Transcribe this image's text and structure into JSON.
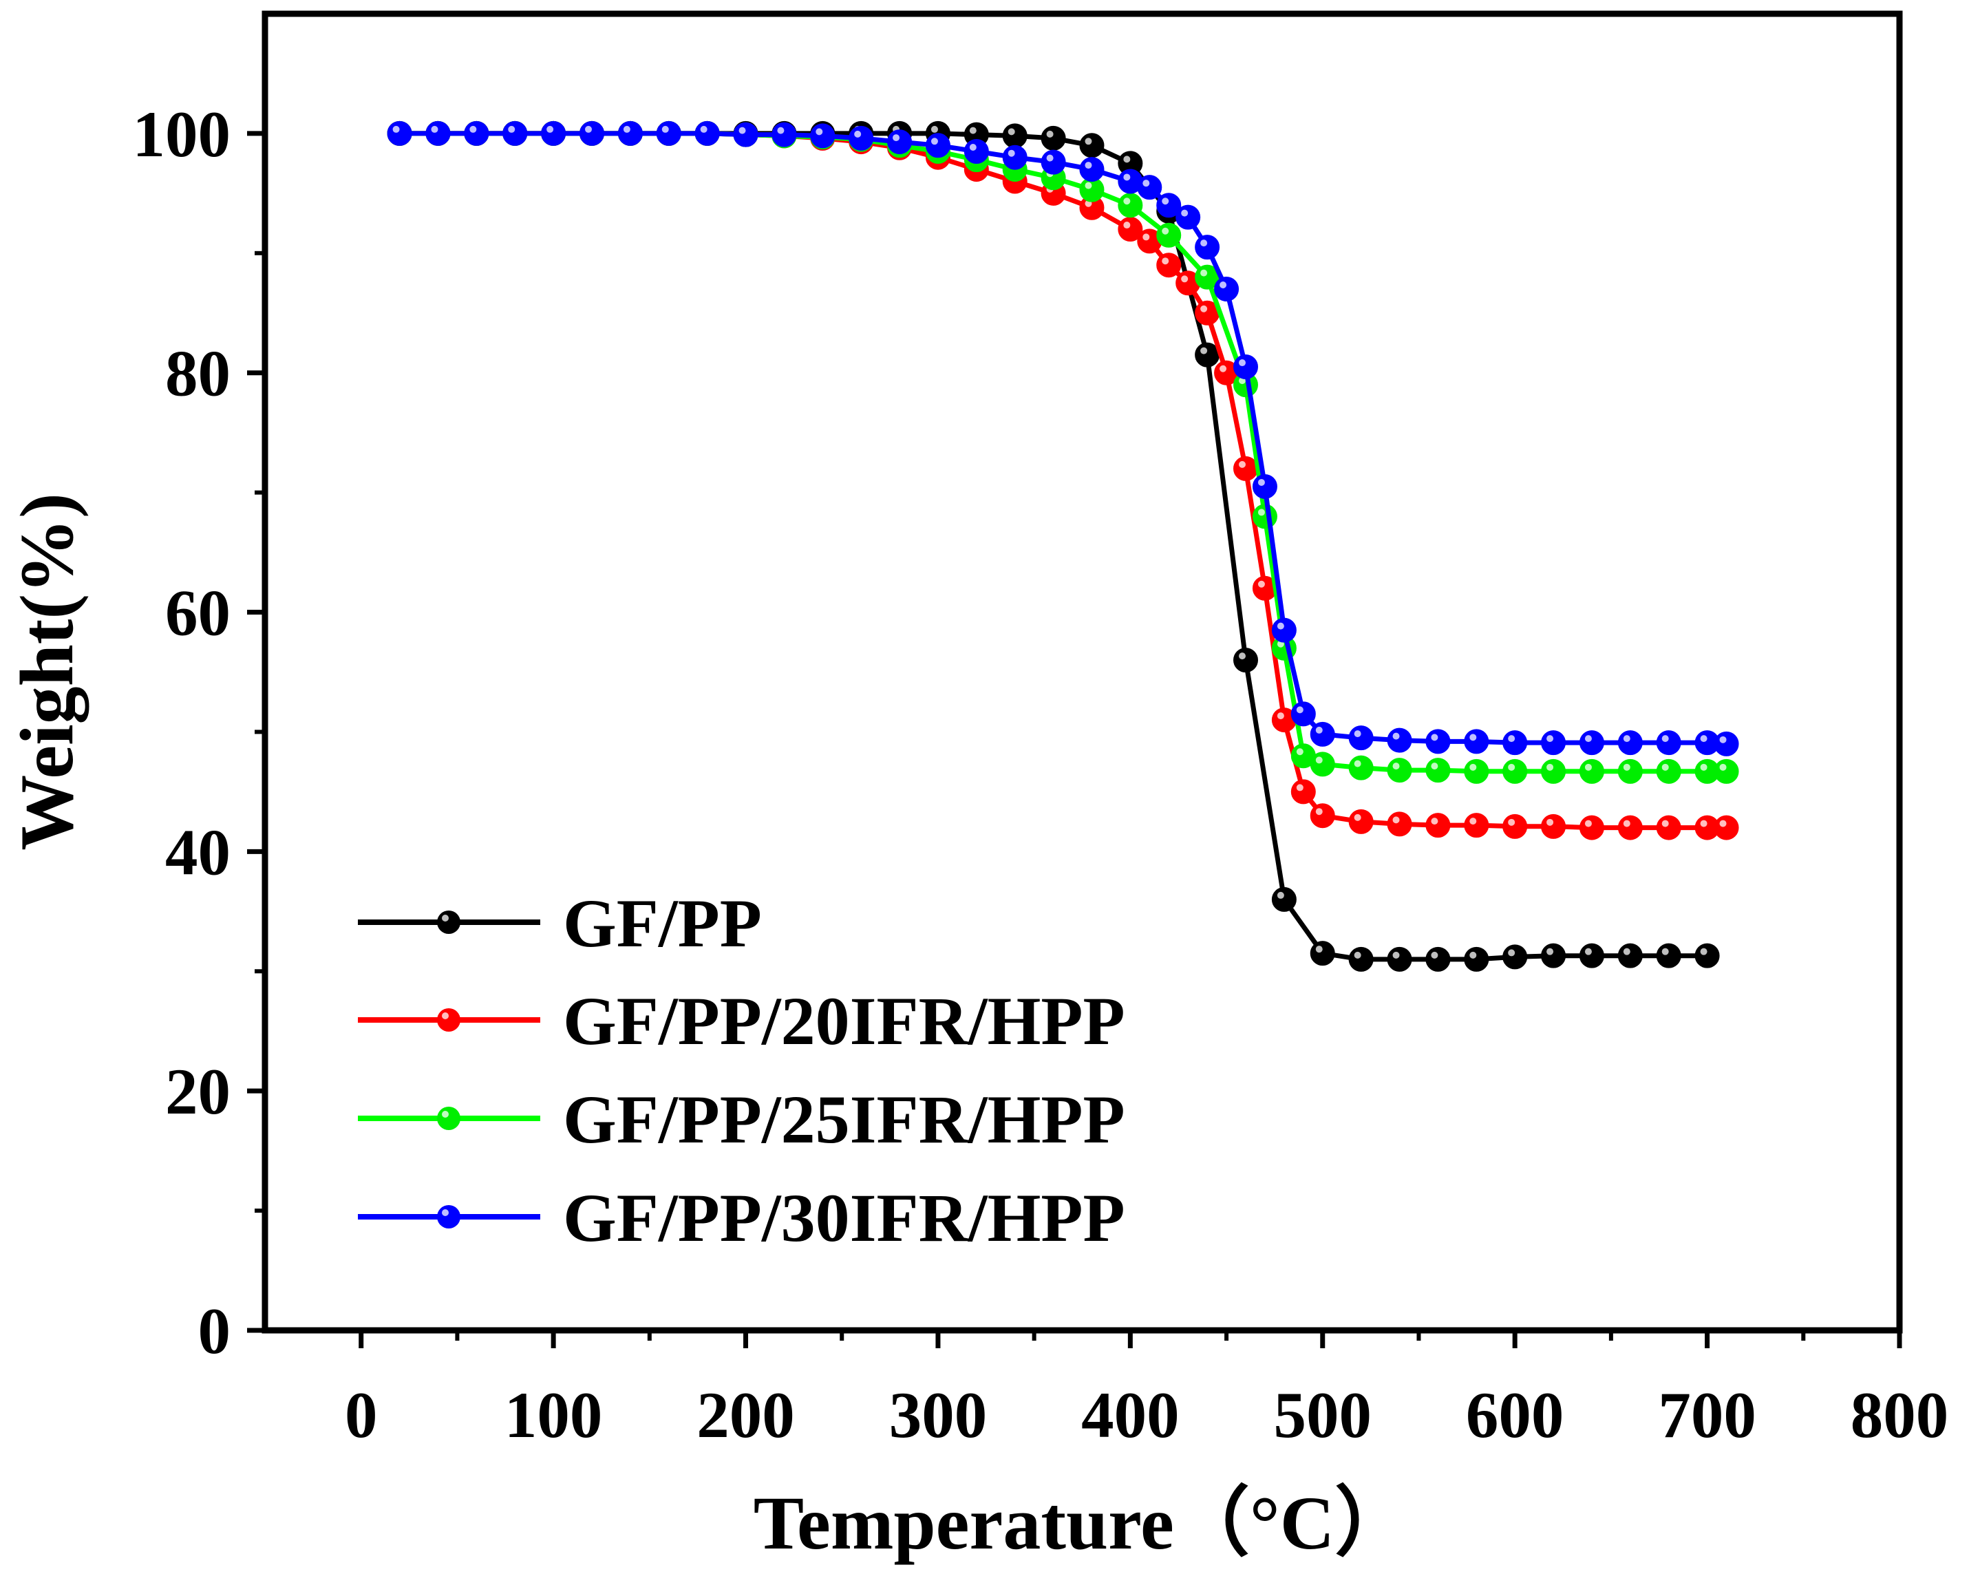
{
  "chart_data": {
    "type": "line",
    "title": "",
    "xlabel": "Temperature（°C）",
    "ylabel": "Weight(%)",
    "xlim": [
      -50,
      800
    ],
    "ylim": [
      0,
      110
    ],
    "xticks": [
      0,
      100,
      200,
      300,
      400,
      500,
      600,
      700,
      800
    ],
    "yticks": [
      0,
      20,
      40,
      60,
      80,
      100
    ],
    "legend_position": "bottom-left",
    "series": [
      {
        "name": "GF/PP",
        "color": "#000000",
        "marker_color": "#000000",
        "points": [
          [
            20,
            100
          ],
          [
            40,
            100
          ],
          [
            60,
            100
          ],
          [
            80,
            100
          ],
          [
            100,
            100
          ],
          [
            120,
            100
          ],
          [
            140,
            100
          ],
          [
            160,
            100
          ],
          [
            180,
            100
          ],
          [
            200,
            100
          ],
          [
            220,
            100
          ],
          [
            240,
            100
          ],
          [
            260,
            100
          ],
          [
            280,
            100
          ],
          [
            300,
            100
          ],
          [
            320,
            99.9
          ],
          [
            340,
            99.8
          ],
          [
            360,
            99.6
          ],
          [
            380,
            99
          ],
          [
            400,
            97.5
          ],
          [
            420,
            93.5
          ],
          [
            440,
            81.5
          ],
          [
            460,
            56
          ],
          [
            480,
            36
          ],
          [
            500,
            31.5
          ],
          [
            520,
            31
          ],
          [
            540,
            31
          ],
          [
            560,
            31
          ],
          [
            580,
            31
          ],
          [
            600,
            31.2
          ],
          [
            620,
            31.3
          ],
          [
            640,
            31.3
          ],
          [
            660,
            31.3
          ],
          [
            680,
            31.3
          ],
          [
            700,
            31.3
          ]
        ]
      },
      {
        "name": "GF/PP/20IFR/HPP",
        "color": "#ff0000",
        "marker_color": "#ff0000",
        "points": [
          [
            20,
            100
          ],
          [
            40,
            100
          ],
          [
            60,
            100
          ],
          [
            80,
            100
          ],
          [
            100,
            100
          ],
          [
            120,
            100
          ],
          [
            140,
            100
          ],
          [
            160,
            100
          ],
          [
            180,
            100
          ],
          [
            200,
            99.9
          ],
          [
            220,
            99.8
          ],
          [
            240,
            99.6
          ],
          [
            260,
            99.3
          ],
          [
            280,
            98.8
          ],
          [
            300,
            98
          ],
          [
            320,
            97
          ],
          [
            340,
            96
          ],
          [
            360,
            95
          ],
          [
            380,
            93.8
          ],
          [
            400,
            92
          ],
          [
            410,
            91
          ],
          [
            420,
            89
          ],
          [
            430,
            87.5
          ],
          [
            440,
            85
          ],
          [
            450,
            80
          ],
          [
            460,
            72
          ],
          [
            470,
            62
          ],
          [
            480,
            51
          ],
          [
            490,
            45
          ],
          [
            500,
            43
          ],
          [
            520,
            42.5
          ],
          [
            540,
            42.3
          ],
          [
            560,
            42.2
          ],
          [
            580,
            42.2
          ],
          [
            600,
            42.1
          ],
          [
            620,
            42.1
          ],
          [
            640,
            42
          ],
          [
            660,
            42
          ],
          [
            680,
            42
          ],
          [
            700,
            42
          ],
          [
            710,
            42
          ]
        ]
      },
      {
        "name": "GF/PP/25IFR/HPP",
        "color": "#00ff00",
        "marker_color": "#00ee00",
        "points": [
          [
            20,
            100
          ],
          [
            40,
            100
          ],
          [
            60,
            100
          ],
          [
            80,
            100
          ],
          [
            100,
            100
          ],
          [
            120,
            100
          ],
          [
            140,
            100
          ],
          [
            160,
            100
          ],
          [
            180,
            100
          ],
          [
            200,
            99.9
          ],
          [
            220,
            99.8
          ],
          [
            240,
            99.7
          ],
          [
            260,
            99.5
          ],
          [
            280,
            99
          ],
          [
            300,
            98.5
          ],
          [
            320,
            97.8
          ],
          [
            340,
            97
          ],
          [
            360,
            96.3
          ],
          [
            380,
            95.3
          ],
          [
            400,
            94
          ],
          [
            420,
            91.5
          ],
          [
            440,
            88
          ],
          [
            460,
            79
          ],
          [
            470,
            68
          ],
          [
            480,
            57
          ],
          [
            490,
            48
          ],
          [
            500,
            47.3
          ],
          [
            520,
            47
          ],
          [
            540,
            46.8
          ],
          [
            560,
            46.8
          ],
          [
            580,
            46.7
          ],
          [
            600,
            46.7
          ],
          [
            620,
            46.7
          ],
          [
            640,
            46.7
          ],
          [
            660,
            46.7
          ],
          [
            680,
            46.7
          ],
          [
            700,
            46.7
          ],
          [
            710,
            46.7
          ]
        ]
      },
      {
        "name": "GF/PP/30IFR/HPP",
        "color": "#0000ff",
        "marker_color": "#0000ff",
        "points": [
          [
            20,
            100
          ],
          [
            40,
            100
          ],
          [
            60,
            100
          ],
          [
            80,
            100
          ],
          [
            100,
            100
          ],
          [
            120,
            100
          ],
          [
            140,
            100
          ],
          [
            160,
            100
          ],
          [
            180,
            100
          ],
          [
            200,
            99.9
          ],
          [
            220,
            99.9
          ],
          [
            240,
            99.8
          ],
          [
            260,
            99.6
          ],
          [
            280,
            99.3
          ],
          [
            300,
            99
          ],
          [
            320,
            98.5
          ],
          [
            340,
            98
          ],
          [
            360,
            97.6
          ],
          [
            380,
            97
          ],
          [
            400,
            96
          ],
          [
            410,
            95.5
          ],
          [
            420,
            94
          ],
          [
            430,
            93
          ],
          [
            440,
            90.5
          ],
          [
            450,
            87
          ],
          [
            460,
            80.5
          ],
          [
            470,
            70.5
          ],
          [
            480,
            58.5
          ],
          [
            490,
            51.5
          ],
          [
            500,
            49.8
          ],
          [
            520,
            49.5
          ],
          [
            540,
            49.3
          ],
          [
            560,
            49.2
          ],
          [
            580,
            49.2
          ],
          [
            600,
            49.1
          ],
          [
            620,
            49.1
          ],
          [
            640,
            49.1
          ],
          [
            660,
            49.1
          ],
          [
            680,
            49.1
          ],
          [
            700,
            49.1
          ],
          [
            710,
            49
          ]
        ]
      }
    ]
  }
}
